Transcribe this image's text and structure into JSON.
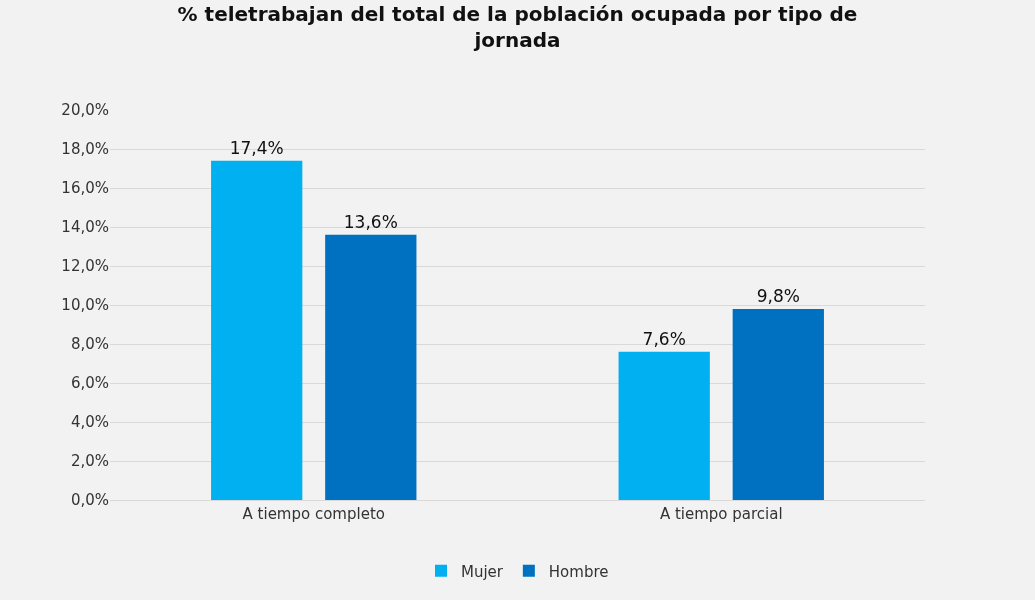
{
  "chart_data": {
    "type": "bar",
    "title": "% teletrabajan del total de la población ocupada por tipo de jornada",
    "categories": [
      "A tiempo completo",
      "A tiempo parcial"
    ],
    "series": [
      {
        "name": "Mujer",
        "color": "#00b0f0",
        "values": [
          17.4,
          7.6
        ],
        "value_labels": [
          "17,4%",
          "7,6%"
        ]
      },
      {
        "name": "Hombre",
        "color": "#0070c0",
        "values": [
          13.6,
          9.8
        ],
        "value_labels": [
          "13,6%",
          "9,8%"
        ]
      }
    ],
    "ylim": [
      0,
      20
    ],
    "yticks": [
      {
        "value": 0,
        "label": "0,0%"
      },
      {
        "value": 2,
        "label": "2,0%"
      },
      {
        "value": 4,
        "label": "4,0%"
      },
      {
        "value": 6,
        "label": "6,0%"
      },
      {
        "value": 8,
        "label": "8,0%"
      },
      {
        "value": 10,
        "label": "10,0%"
      },
      {
        "value": 12,
        "label": "12,0%"
      },
      {
        "value": 14,
        "label": "14,0%"
      },
      {
        "value": 16,
        "label": "16,0%"
      },
      {
        "value": 18,
        "label": "18,0%"
      },
      {
        "value": 20,
        "label": "20,0%"
      }
    ],
    "grid": "y",
    "legend": "bottom"
  }
}
